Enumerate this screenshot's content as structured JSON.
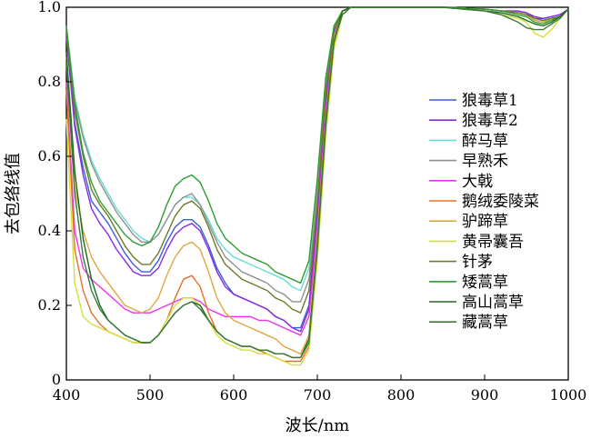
{
  "chart_data": {
    "type": "line",
    "xlabel": "波长/nm",
    "ylabel": "去包络线值",
    "xlim": [
      400,
      1000
    ],
    "ylim": [
      0,
      1.0
    ],
    "x_ticks": [
      "400",
      "500",
      "600",
      "700",
      "800",
      "900",
      "1000"
    ],
    "y_ticks": [
      "0",
      "0.2",
      "0.4",
      "0.6",
      "0.8",
      "1.0"
    ],
    "grid": false,
    "legend_position": "right",
    "x": [
      400,
      410,
      420,
      430,
      440,
      450,
      460,
      470,
      480,
      490,
      500,
      510,
      520,
      530,
      540,
      550,
      560,
      570,
      580,
      590,
      600,
      610,
      620,
      630,
      640,
      650,
      660,
      670,
      680,
      690,
      700,
      710,
      720,
      730,
      740,
      750,
      760,
      800,
      850,
      900,
      920,
      940,
      950,
      960,
      970,
      980,
      990,
      1000
    ],
    "series": [
      {
        "name": "狼毒草1",
        "color": "#3a5fd9",
        "values": [
          0.92,
          0.69,
          0.57,
          0.48,
          0.45,
          0.42,
          0.38,
          0.34,
          0.31,
          0.29,
          0.29,
          0.32,
          0.37,
          0.41,
          0.43,
          0.43,
          0.41,
          0.36,
          0.3,
          0.26,
          0.23,
          0.22,
          0.21,
          0.2,
          0.19,
          0.17,
          0.16,
          0.14,
          0.14,
          0.2,
          0.45,
          0.75,
          0.93,
          0.99,
          1.0,
          1.0,
          1.0,
          1.0,
          1.0,
          0.995,
          0.99,
          0.99,
          0.985,
          0.97,
          0.97,
          0.975,
          0.98,
          0.995
        ]
      },
      {
        "name": "狼毒草2",
        "color": "#8a2be2",
        "values": [
          0.92,
          0.68,
          0.55,
          0.46,
          0.42,
          0.39,
          0.35,
          0.32,
          0.29,
          0.28,
          0.28,
          0.3,
          0.35,
          0.39,
          0.41,
          0.42,
          0.4,
          0.35,
          0.29,
          0.25,
          0.23,
          0.22,
          0.21,
          0.2,
          0.19,
          0.17,
          0.16,
          0.14,
          0.13,
          0.19,
          0.44,
          0.74,
          0.93,
          0.99,
          1.0,
          1.0,
          1.0,
          1.0,
          1.0,
          0.995,
          0.99,
          0.99,
          0.985,
          0.975,
          0.97,
          0.975,
          0.98,
          0.995
        ]
      },
      {
        "name": "醉马草",
        "color": "#66ddd5",
        "values": [
          0.95,
          0.76,
          0.66,
          0.59,
          0.54,
          0.5,
          0.46,
          0.43,
          0.4,
          0.38,
          0.37,
          0.39,
          0.43,
          0.47,
          0.49,
          0.49,
          0.47,
          0.43,
          0.38,
          0.35,
          0.33,
          0.32,
          0.31,
          0.3,
          0.29,
          0.28,
          0.27,
          0.25,
          0.24,
          0.3,
          0.52,
          0.8,
          0.95,
          0.99,
          1.0,
          1.0,
          1.0,
          1.0,
          1.0,
          0.995,
          0.99,
          0.985,
          0.98,
          0.965,
          0.96,
          0.97,
          0.975,
          0.995
        ]
      },
      {
        "name": "早熟禾",
        "color": "#909090",
        "values": [
          0.94,
          0.75,
          0.65,
          0.58,
          0.53,
          0.49,
          0.45,
          0.42,
          0.39,
          0.37,
          0.37,
          0.39,
          0.43,
          0.47,
          0.49,
          0.5,
          0.47,
          0.42,
          0.37,
          0.33,
          0.31,
          0.29,
          0.28,
          0.27,
          0.26,
          0.24,
          0.23,
          0.21,
          0.21,
          0.27,
          0.5,
          0.79,
          0.95,
          0.99,
          1.0,
          1.0,
          1.0,
          1.0,
          1.0,
          0.995,
          0.99,
          0.985,
          0.98,
          0.97,
          0.965,
          0.97,
          0.975,
          0.995
        ]
      },
      {
        "name": "大戟",
        "color": "#ee33ee",
        "values": [
          0.8,
          0.4,
          0.3,
          0.27,
          0.25,
          0.23,
          0.21,
          0.19,
          0.18,
          0.18,
          0.18,
          0.19,
          0.2,
          0.21,
          0.22,
          0.22,
          0.21,
          0.19,
          0.18,
          0.17,
          0.17,
          0.17,
          0.17,
          0.16,
          0.16,
          0.15,
          0.14,
          0.13,
          0.12,
          0.17,
          0.4,
          0.72,
          0.92,
          0.99,
          1.0,
          1.0,
          1.0,
          1.0,
          1.0,
          0.995,
          0.99,
          0.985,
          0.98,
          0.97,
          0.965,
          0.97,
          0.975,
          0.995
        ]
      },
      {
        "name": "鹅绒委陵菜",
        "color": "#e8702a",
        "values": [
          0.78,
          0.35,
          0.24,
          0.18,
          0.15,
          0.13,
          0.12,
          0.11,
          0.1,
          0.1,
          0.1,
          0.12,
          0.16,
          0.22,
          0.27,
          0.28,
          0.25,
          0.18,
          0.13,
          0.11,
          0.1,
          0.09,
          0.09,
          0.08,
          0.07,
          0.06,
          0.05,
          0.05,
          0.05,
          0.09,
          0.34,
          0.67,
          0.9,
          0.98,
          1.0,
          1.0,
          1.0,
          1.0,
          1.0,
          0.995,
          0.99,
          0.985,
          0.98,
          0.97,
          0.965,
          0.97,
          0.975,
          0.995
        ]
      },
      {
        "name": "驴蹄草",
        "color": "#e0a840",
        "values": [
          0.87,
          0.52,
          0.4,
          0.33,
          0.29,
          0.26,
          0.23,
          0.2,
          0.19,
          0.18,
          0.19,
          0.22,
          0.28,
          0.33,
          0.36,
          0.37,
          0.35,
          0.29,
          0.22,
          0.18,
          0.16,
          0.15,
          0.14,
          0.13,
          0.12,
          0.11,
          0.09,
          0.08,
          0.07,
          0.12,
          0.38,
          0.7,
          0.92,
          0.99,
          1.0,
          1.0,
          1.0,
          1.0,
          1.0,
          0.995,
          0.99,
          0.985,
          0.98,
          0.965,
          0.96,
          0.965,
          0.975,
          0.995
        ]
      },
      {
        "name": "黄帚囊吾",
        "color": "#d4e03a",
        "values": [
          0.7,
          0.26,
          0.17,
          0.15,
          0.14,
          0.13,
          0.12,
          0.11,
          0.1,
          0.1,
          0.1,
          0.12,
          0.16,
          0.2,
          0.22,
          0.22,
          0.2,
          0.16,
          0.12,
          0.1,
          0.09,
          0.08,
          0.08,
          0.07,
          0.07,
          0.06,
          0.05,
          0.04,
          0.04,
          0.08,
          0.32,
          0.65,
          0.89,
          0.98,
          1.0,
          1.0,
          1.0,
          1.0,
          1.0,
          0.99,
          0.98,
          0.97,
          0.96,
          0.93,
          0.92,
          0.94,
          0.97,
          0.995
        ]
      },
      {
        "name": "针茅",
        "color": "#6e7b2a",
        "values": [
          0.93,
          0.72,
          0.6,
          0.51,
          0.47,
          0.44,
          0.4,
          0.36,
          0.33,
          0.31,
          0.31,
          0.34,
          0.39,
          0.44,
          0.47,
          0.48,
          0.46,
          0.41,
          0.35,
          0.31,
          0.29,
          0.27,
          0.26,
          0.25,
          0.24,
          0.22,
          0.21,
          0.19,
          0.18,
          0.24,
          0.47,
          0.77,
          0.94,
          0.99,
          1.0,
          1.0,
          1.0,
          1.0,
          1.0,
          0.995,
          0.99,
          0.985,
          0.98,
          0.97,
          0.965,
          0.97,
          0.975,
          0.995
        ]
      },
      {
        "name": "矮蒿草",
        "color": "#2e9e2e",
        "values": [
          0.95,
          0.74,
          0.61,
          0.53,
          0.48,
          0.45,
          0.42,
          0.39,
          0.37,
          0.36,
          0.37,
          0.41,
          0.47,
          0.52,
          0.54,
          0.55,
          0.53,
          0.48,
          0.42,
          0.38,
          0.36,
          0.34,
          0.33,
          0.32,
          0.31,
          0.29,
          0.28,
          0.27,
          0.26,
          0.32,
          0.54,
          0.81,
          0.95,
          0.99,
          1.0,
          1.0,
          1.0,
          1.0,
          1.0,
          0.995,
          0.99,
          0.98,
          0.975,
          0.96,
          0.955,
          0.965,
          0.975,
          0.995
        ]
      },
      {
        "name": "高山蒿草",
        "color": "#1e6b1e",
        "values": [
          0.88,
          0.56,
          0.38,
          0.27,
          0.2,
          0.16,
          0.14,
          0.12,
          0.11,
          0.1,
          0.1,
          0.12,
          0.15,
          0.18,
          0.2,
          0.21,
          0.2,
          0.16,
          0.13,
          0.11,
          0.1,
          0.09,
          0.09,
          0.08,
          0.08,
          0.07,
          0.07,
          0.06,
          0.06,
          0.11,
          0.36,
          0.69,
          0.91,
          0.99,
          1.0,
          1.0,
          1.0,
          1.0,
          1.0,
          0.99,
          0.985,
          0.975,
          0.965,
          0.955,
          0.95,
          0.96,
          0.975,
          0.995
        ]
      },
      {
        "name": "藏蒿草",
        "color": "#3d7a3d",
        "values": [
          0.85,
          0.5,
          0.33,
          0.24,
          0.19,
          0.16,
          0.14,
          0.12,
          0.11,
          0.1,
          0.1,
          0.12,
          0.15,
          0.18,
          0.2,
          0.21,
          0.19,
          0.16,
          0.13,
          0.11,
          0.1,
          0.09,
          0.09,
          0.08,
          0.08,
          0.07,
          0.07,
          0.06,
          0.06,
          0.1,
          0.35,
          0.68,
          0.91,
          0.98,
          1.0,
          1.0,
          1.0,
          1.0,
          1.0,
          0.99,
          0.98,
          0.96,
          0.945,
          0.94,
          0.94,
          0.955,
          0.97,
          0.995
        ]
      }
    ]
  }
}
